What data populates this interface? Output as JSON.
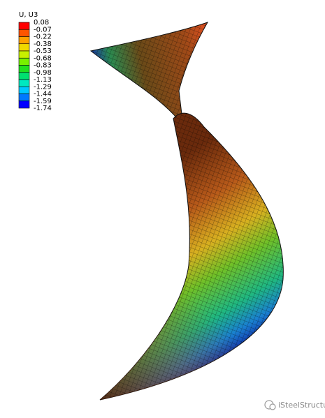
{
  "legend": {
    "title": "U, U3",
    "labels": [
      "0.08",
      "-0.07",
      "-0.22",
      "-0.38",
      "-0.53",
      "-0.68",
      "-0.83",
      "-0.98",
      "-1.13",
      "-1.29",
      "-1.44",
      "-1.59",
      "-1.74"
    ],
    "colors": [
      "#ff0000",
      "#ff5500",
      "#ffa000",
      "#f0d800",
      "#c8f000",
      "#78f000",
      "#20e020",
      "#00e070",
      "#00e8c0",
      "#00c8ff",
      "#0078ff",
      "#0000ff"
    ]
  },
  "watermark": "iSteelStructure"
}
